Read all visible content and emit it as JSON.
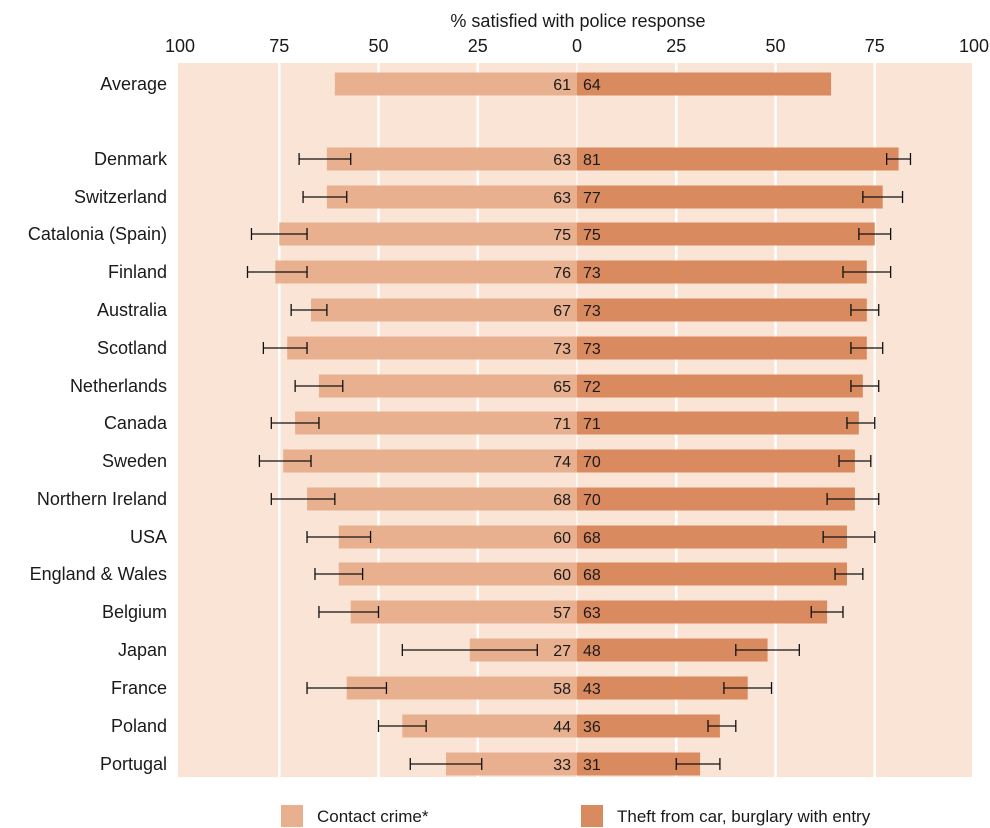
{
  "chart_data": {
    "type": "bar",
    "orientation": "horizontal-diverging",
    "axis_title": "% satisfied with police response",
    "x_range": [
      0,
      100
    ],
    "ticks_left": [
      "100",
      "75",
      "50",
      "25",
      "0"
    ],
    "ticks_right": [
      "25",
      "50",
      "75",
      "100"
    ],
    "grid": true,
    "legend_position": "bottom",
    "categories": [
      "Average",
      "Denmark",
      "Switzerland",
      "Catalonia (Spain)",
      "Finland",
      "Australia",
      "Scotland",
      "Netherlands",
      "Canada",
      "Sweden",
      "Northern Ireland",
      "USA",
      "England & Wales",
      "Belgium",
      "Japan",
      "France",
      "Poland",
      "Portugal"
    ],
    "series": [
      {
        "name": "Contact crime*",
        "side": "left",
        "color": "#e8b08e",
        "values": [
          61,
          63,
          63,
          75,
          76,
          67,
          73,
          65,
          71,
          74,
          68,
          60,
          60,
          57,
          27,
          58,
          44,
          33
        ],
        "error": [
          null,
          [
            57,
            70
          ],
          [
            58,
            69
          ],
          [
            68,
            82
          ],
          [
            68,
            83
          ],
          [
            63,
            72
          ],
          [
            68,
            79
          ],
          [
            59,
            71
          ],
          [
            65,
            77
          ],
          [
            67,
            80
          ],
          [
            61,
            77
          ],
          [
            52,
            68
          ],
          [
            54,
            66
          ],
          [
            50,
            65
          ],
          [
            10,
            44
          ],
          [
            48,
            68
          ],
          [
            38,
            50
          ],
          [
            24,
            42
          ]
        ]
      },
      {
        "name": "Theft from car, burglary with entry",
        "side": "right",
        "color": "#d98a5f",
        "values": [
          64,
          81,
          77,
          75,
          73,
          73,
          73,
          72,
          71,
          70,
          70,
          68,
          68,
          63,
          48,
          43,
          36,
          31
        ],
        "error": [
          null,
          [
            78,
            84
          ],
          [
            72,
            82
          ],
          [
            71,
            79
          ],
          [
            67,
            79
          ],
          [
            69,
            76
          ],
          [
            69,
            77
          ],
          [
            69,
            76
          ],
          [
            68,
            75
          ],
          [
            66,
            74
          ],
          [
            63,
            76
          ],
          [
            62,
            75
          ],
          [
            65,
            72
          ],
          [
            59,
            67
          ],
          [
            40,
            56
          ],
          [
            37,
            49
          ],
          [
            33,
            40
          ],
          [
            25,
            36
          ]
        ]
      }
    ],
    "colors": {
      "panel": "#f9e4d6",
      "gridline": "#ffffff",
      "error_bar": "#111111"
    }
  }
}
